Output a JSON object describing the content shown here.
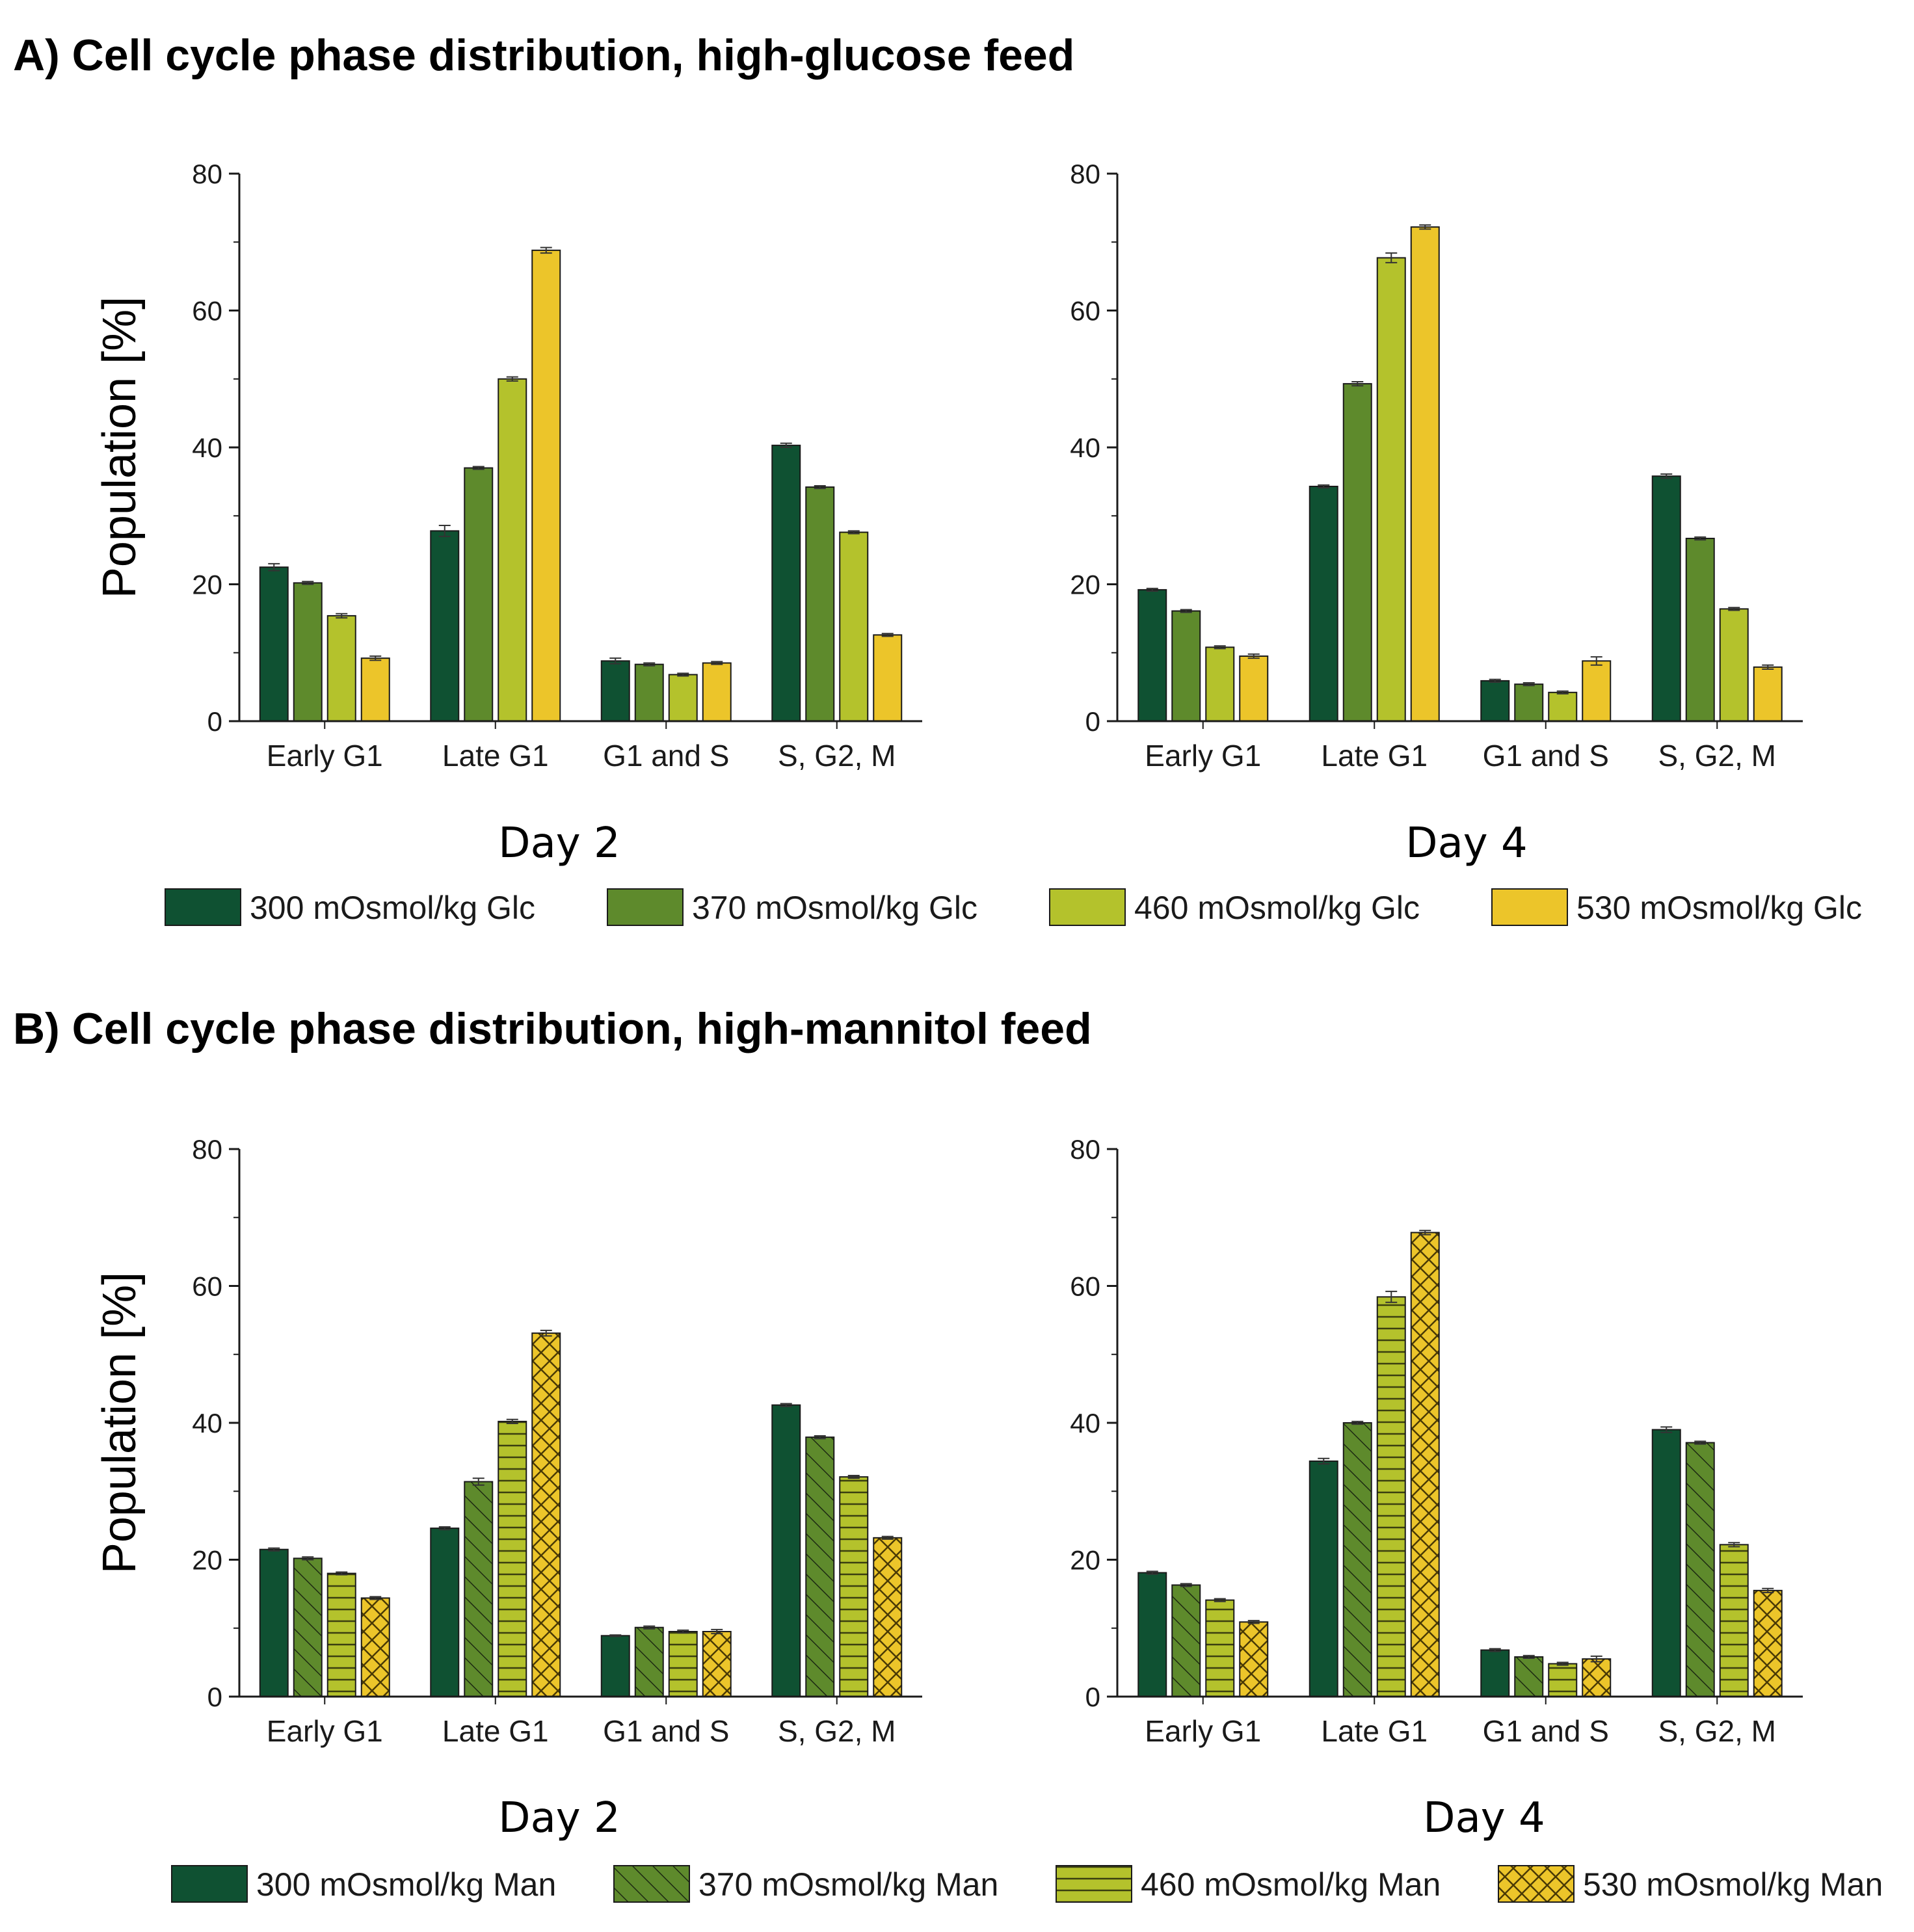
{
  "figure": {
    "panel_a_title": "A) Cell cycle phase distribution, high-glucose feed",
    "panel_b_title": "B) Cell cycle phase distribution, high-mannitol feed"
  },
  "colors": {
    "c300": "#0f5132",
    "c370": "#5e8a2c",
    "c460": "#b4c22c",
    "c530": "#ecc52a"
  },
  "chart_data": [
    {
      "id": "A-day2",
      "type": "bar",
      "title": "Day 2",
      "ylabel": "Population [%]",
      "ylim": [
        0,
        80
      ],
      "yticks": [
        0,
        20,
        40,
        60,
        80
      ],
      "categories": [
        "Early G1",
        "Late G1",
        "G1 and S",
        "S, G2, M"
      ],
      "series": [
        {
          "name": "300 mOsmol/kg Glc",
          "values": [
            22.5,
            27.8,
            8.8,
            40.3
          ],
          "errors": [
            0.5,
            0.8,
            0.4,
            0.3
          ]
        },
        {
          "name": "370 mOsmol/kg Glc",
          "values": [
            20.2,
            37.0,
            8.3,
            34.2
          ],
          "errors": [
            0.2,
            0.2,
            0.2,
            0.2
          ]
        },
        {
          "name": "460 mOsmol/kg Glc",
          "values": [
            15.4,
            50.0,
            6.8,
            27.6
          ],
          "errors": [
            0.3,
            0.3,
            0.2,
            0.2
          ]
        },
        {
          "name": "530 mOsmol/kg Glc",
          "values": [
            9.2,
            68.8,
            8.5,
            12.6
          ],
          "errors": [
            0.3,
            0.4,
            0.2,
            0.2
          ]
        }
      ]
    },
    {
      "id": "A-day4",
      "type": "bar",
      "title": "Day 4",
      "ylabel": "",
      "ylim": [
        0,
        80
      ],
      "yticks": [
        0,
        20,
        40,
        60,
        80
      ],
      "categories": [
        "Early G1",
        "Late G1",
        "G1 and S",
        "S, G2, M"
      ],
      "series": [
        {
          "name": "300 mOsmol/kg Glc",
          "values": [
            19.2,
            34.3,
            5.9,
            35.8
          ],
          "errors": [
            0.2,
            0.2,
            0.2,
            0.3
          ]
        },
        {
          "name": "370 mOsmol/kg Glc",
          "values": [
            16.1,
            49.3,
            5.4,
            26.7
          ],
          "errors": [
            0.2,
            0.3,
            0.2,
            0.2
          ]
        },
        {
          "name": "460 mOsmol/kg Glc",
          "values": [
            10.8,
            67.7,
            4.2,
            16.4
          ],
          "errors": [
            0.2,
            0.7,
            0.2,
            0.2
          ]
        },
        {
          "name": "530 mOsmol/kg Glc",
          "values": [
            9.5,
            72.2,
            8.8,
            7.9
          ],
          "errors": [
            0.3,
            0.3,
            0.6,
            0.3
          ]
        }
      ]
    },
    {
      "id": "B-day2",
      "type": "bar",
      "title": "Day 2",
      "ylabel": "Population [%]",
      "ylim": [
        0,
        80
      ],
      "yticks": [
        0,
        20,
        40,
        60,
        80
      ],
      "categories": [
        "Early G1",
        "Late G1",
        "G1 and S",
        "S, G2, M"
      ],
      "series": [
        {
          "name": "300 mOsmol/kg Man",
          "values": [
            21.5,
            24.6,
            8.9,
            42.6
          ],
          "errors": [
            0.2,
            0.2,
            0.1,
            0.2
          ]
        },
        {
          "name": "370 mOsmol/kg Man",
          "values": [
            20.2,
            31.4,
            10.1,
            37.9
          ],
          "errors": [
            0.2,
            0.5,
            0.2,
            0.2
          ]
        },
        {
          "name": "460 mOsmol/kg Man",
          "values": [
            18.0,
            40.2,
            9.5,
            32.1
          ],
          "errors": [
            0.2,
            0.3,
            0.2,
            0.2
          ]
        },
        {
          "name": "530 mOsmol/kg Man",
          "values": [
            14.4,
            53.1,
            9.5,
            23.2
          ],
          "errors": [
            0.2,
            0.4,
            0.3,
            0.2
          ]
        }
      ]
    },
    {
      "id": "B-day4",
      "type": "bar",
      "title": "Day 4",
      "ylabel": "",
      "ylim": [
        0,
        80
      ],
      "yticks": [
        0,
        20,
        40,
        60,
        80
      ],
      "categories": [
        "Early G1",
        "Late G1",
        "G1 and S",
        "S, G2, M"
      ],
      "series": [
        {
          "name": "300 mOsmol/kg Man",
          "values": [
            18.1,
            34.4,
            6.8,
            39.0
          ],
          "errors": [
            0.2,
            0.4,
            0.2,
            0.4
          ]
        },
        {
          "name": "370 mOsmol/kg Man",
          "values": [
            16.3,
            40.0,
            5.8,
            37.1
          ],
          "errors": [
            0.2,
            0.2,
            0.2,
            0.2
          ]
        },
        {
          "name": "460 mOsmol/kg Man",
          "values": [
            14.1,
            58.4,
            4.8,
            22.2
          ],
          "errors": [
            0.2,
            0.8,
            0.2,
            0.3
          ]
        },
        {
          "name": "530 mOsmol/kg Man",
          "values": [
            10.9,
            67.8,
            5.5,
            15.5
          ],
          "errors": [
            0.2,
            0.3,
            0.4,
            0.3
          ]
        }
      ]
    }
  ],
  "legend_a": [
    {
      "label": "300 mOsmol/kg Glc",
      "pattern": "solid"
    },
    {
      "label": "370 mOsmol/kg Glc",
      "pattern": "solid"
    },
    {
      "label": "460 mOsmol/kg Glc",
      "pattern": "solid"
    },
    {
      "label": "530 mOsmol/kg Glc",
      "pattern": "solid"
    }
  ],
  "legend_b": [
    {
      "label": "300 mOsmol/kg Man",
      "pattern": "solid"
    },
    {
      "label": "370 mOsmol/kg Man",
      "pattern": "diagonal"
    },
    {
      "label": "460 mOsmol/kg Man",
      "pattern": "horizontal"
    },
    {
      "label": "530 mOsmol/kg Man",
      "pattern": "crosshatch"
    }
  ]
}
